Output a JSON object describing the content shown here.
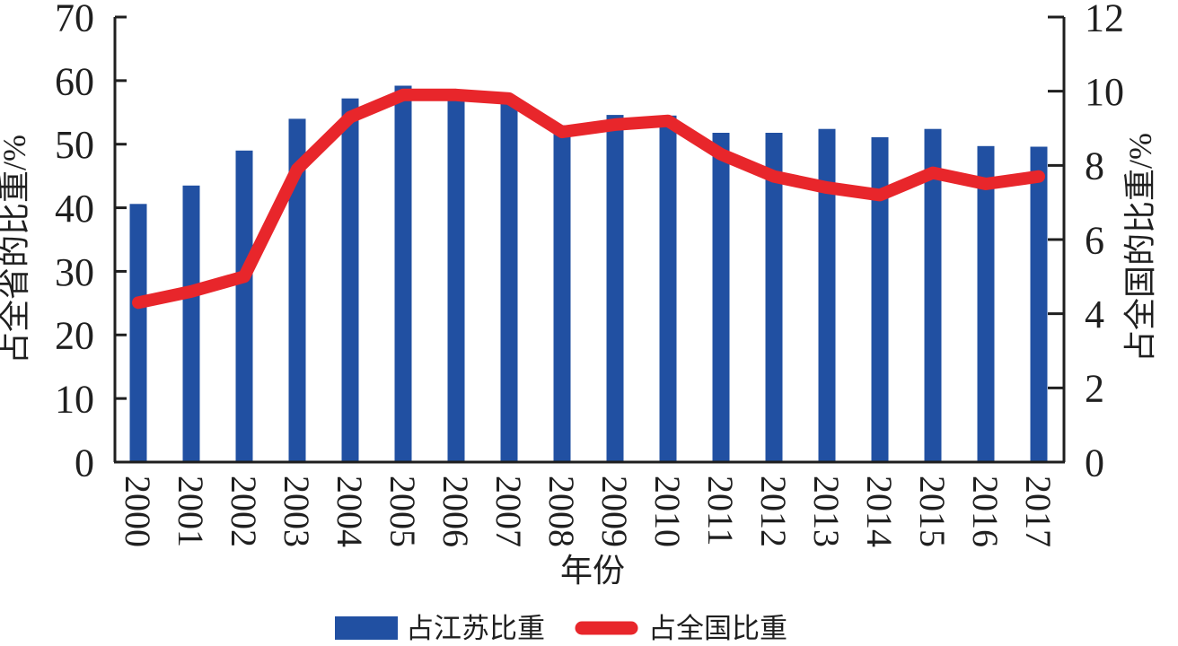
{
  "chart_data": {
    "type": "bar",
    "subtype": "bar-line-combo",
    "categories": [
      "2000",
      "2001",
      "2002",
      "2003",
      "2004",
      "2005",
      "2006",
      "2007",
      "2008",
      "2009",
      "2010",
      "2011",
      "2012",
      "2013",
      "2014",
      "2015",
      "2016",
      "2017"
    ],
    "series": [
      {
        "name": "占江苏比重",
        "kind": "bar",
        "axis": "left",
        "color": "#2150A2",
        "values": [
          40.6,
          43.5,
          49.0,
          54.0,
          57.2,
          59.2,
          57.0,
          56.7,
          53.0,
          54.6,
          54.5,
          51.8,
          51.8,
          52.4,
          51.1,
          52.4,
          49.7,
          49.6
        ]
      },
      {
        "name": "占全国比重",
        "kind": "line",
        "axis": "right",
        "color": "#E8262B",
        "values": [
          4.3,
          4.6,
          5.0,
          7.9,
          9.3,
          9.9,
          9.9,
          9.8,
          8.9,
          9.1,
          9.2,
          8.3,
          7.7,
          7.4,
          7.2,
          7.8,
          7.5,
          7.7
        ]
      }
    ],
    "left_axis": {
      "label": "占全省的比重/%",
      "min": 0,
      "max": 70,
      "step": 10,
      "ticks": [
        0,
        10,
        20,
        30,
        40,
        50,
        60,
        70
      ]
    },
    "right_axis": {
      "label": "占全国的比重/%",
      "min": 0,
      "max": 12,
      "step": 2,
      "ticks": [
        0,
        2,
        4,
        6,
        8,
        10,
        12
      ]
    },
    "xlabel": "年份",
    "legend": [
      "占江苏比重",
      "占全国比重"
    ],
    "legend_position": "bottom",
    "grid": false,
    "colors": {
      "bar": "#2150A2",
      "line": "#E8262B",
      "axis": "#1f1f1f",
      "background": "#FFFFFF"
    }
  }
}
